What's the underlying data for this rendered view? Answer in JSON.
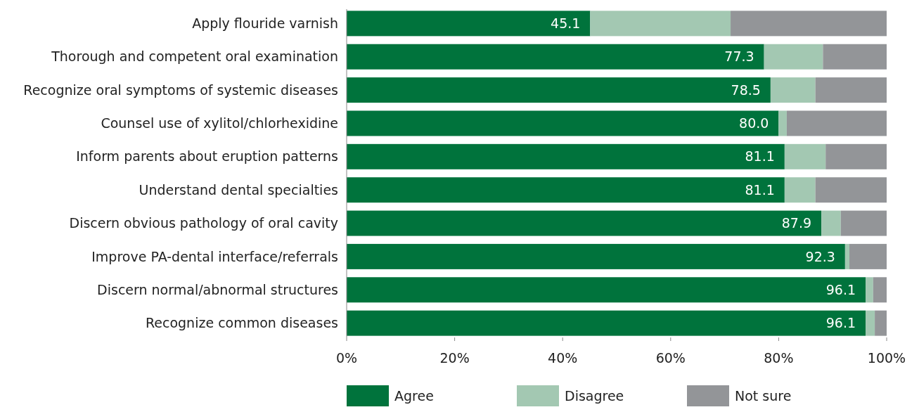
{
  "chart_data": {
    "type": "bar",
    "orientation": "horizontal",
    "stacked": true,
    "categories": [
      "Apply flouride varnish",
      "Thorough and competent oral examination",
      "Recognize oral symptoms of systemic diseases",
      "Counsel use of xylitol/chlorhexidine",
      "Inform parents about eruption patterns",
      "Understand dental specialties ",
      "Discern obvious pathology of oral cavity",
      "Improve PA-dental interface/referrals",
      "Discern normal/abnormal structures",
      "Recognize common diseases"
    ],
    "series": [
      {
        "name": "Agree",
        "color": "#00733c",
        "values": [
          45.1,
          77.3,
          78.5,
          80.0,
          81.1,
          81.1,
          87.9,
          92.3,
          96.1,
          96.1
        ],
        "value_labels": [
          "45.1",
          "77.3",
          "78.5",
          "80.0",
          "81.1",
          "81.1",
          "87.9",
          "92.3",
          "96.1",
          "96.1"
        ]
      },
      {
        "name": "Disagree",
        "color": "#a3c8b2",
        "values": [
          26.0,
          10.9,
          8.3,
          1.5,
          7.6,
          5.7,
          3.6,
          0.8,
          1.4,
          1.7
        ]
      },
      {
        "name": "Not sure",
        "color": "#939598",
        "values": [
          28.9,
          11.8,
          13.2,
          18.5,
          11.3,
          13.2,
          8.5,
          6.9,
          2.5,
          2.2
        ]
      }
    ],
    "xlim": [
      0,
      100
    ],
    "xticks": [
      {
        "value": 0,
        "label": "0%"
      },
      {
        "value": 20,
        "label": "20%"
      },
      {
        "value": 40,
        "label": "40%"
      },
      {
        "value": 60,
        "label": "60%"
      },
      {
        "value": 80,
        "label": "80%"
      },
      {
        "value": 100,
        "label": "100%"
      }
    ],
    "legend": "bottom"
  }
}
